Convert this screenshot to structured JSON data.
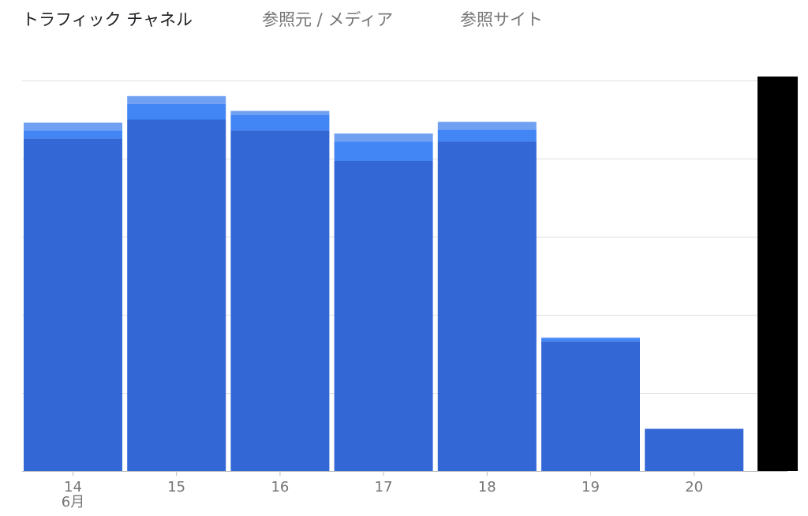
{
  "tabs": [
    {
      "label": "トラフィック チャネル",
      "active": true
    },
    {
      "label": "参照元 / メディア",
      "active": false
    },
    {
      "label": "参照サイト",
      "active": false
    }
  ],
  "colors": {
    "segment_1": "#3367d6",
    "segment_2": "#4285f4",
    "segment_3": "#6fa0f2",
    "gridline": "#e0e0e0",
    "axis": "#bdbdbd",
    "tick_label": "#757575"
  },
  "chart_data": {
    "type": "bar",
    "stacked": true,
    "categories": [
      "14",
      "15",
      "16",
      "17",
      "18",
      "19",
      "20"
    ],
    "month_label": "6月",
    "series": [
      {
        "values": [
          426,
          450,
          436,
          397,
          422,
          166,
          54
        ]
      },
      {
        "values": [
          10,
          20,
          20,
          25,
          15,
          4,
          0
        ]
      },
      {
        "values": [
          10,
          10,
          5,
          10,
          10,
          1,
          0
        ]
      }
    ],
    "ylim": [
      0,
      500
    ],
    "y_gridline_count": 5,
    "grid": true,
    "legend": "none"
  }
}
